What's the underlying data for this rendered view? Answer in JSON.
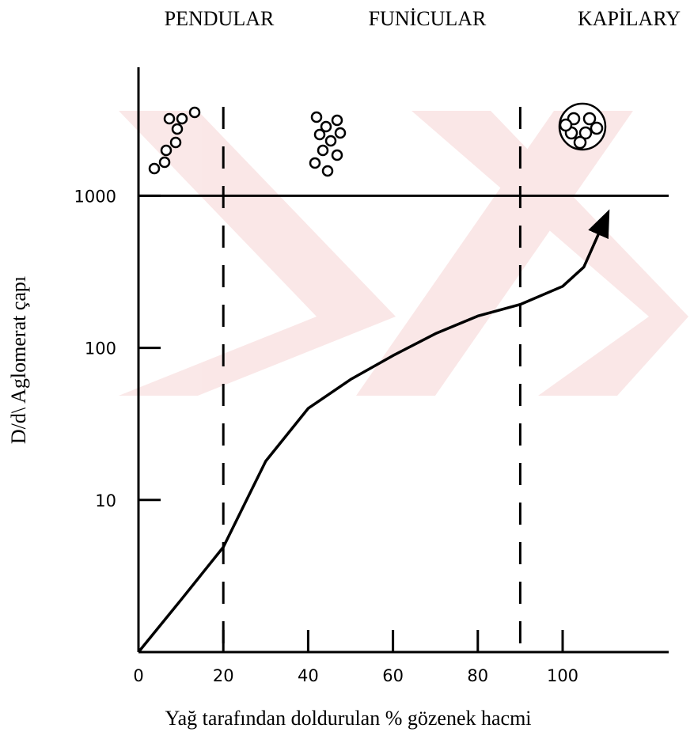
{
  "chart_data": {
    "type": "line",
    "log_y": true,
    "x_label": "Yağ tarafından doldurulan % gözenek hacmi",
    "y_label": "D/d\\ Aglomerat çapı",
    "regions": [
      "PENDULAR",
      "FUNİCULAR",
      "KAPİLARY"
    ],
    "boundaries": [
      20,
      90
    ],
    "hline": 1000,
    "x": [
      0,
      10,
      20,
      30,
      40,
      50,
      60,
      70,
      80,
      90,
      100,
      105,
      110
    ],
    "values": [
      1,
      2.2,
      4.9,
      18,
      40,
      62,
      89,
      124,
      162,
      193,
      254,
      340,
      700
    ],
    "color": "#000000",
    "xlim": [
      0,
      125
    ],
    "xticks": [
      0,
      20,
      40,
      60,
      80,
      100
    ],
    "ylim": [
      1,
      7000
    ],
    "yticks": [
      10,
      100,
      1000
    ]
  }
}
